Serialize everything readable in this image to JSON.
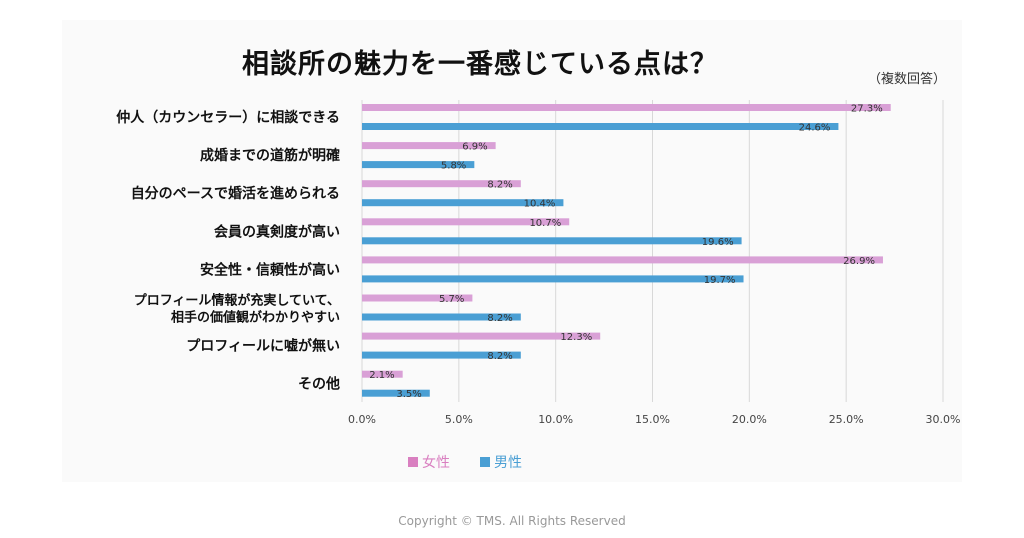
{
  "chart_data": {
    "type": "bar",
    "orientation": "horizontal",
    "title": "相談所の魅力を一番感じている点は？",
    "subtitle": "（複数回答）",
    "categories": [
      [
        "仲人（カウンセラー）に相談できる"
      ],
      [
        "成婚までの道筋が明確"
      ],
      [
        "自分のペースで婚活を進められる"
      ],
      [
        "会員の真剣度が高い"
      ],
      [
        "安全性・信頼性が高い"
      ],
      [
        "プロフィール情報が充実していて、",
        "相手の価値観がわかりやすい"
      ],
      [
        "プロフィールに嘘が無い"
      ],
      [
        "その他"
      ]
    ],
    "series": [
      {
        "name": "女性",
        "color": "#d9a0d6",
        "legend_color": "#d97fc0",
        "values": [
          27.3,
          6.9,
          8.2,
          10.7,
          26.9,
          5.7,
          12.3,
          2.1
        ],
        "labels": [
          "27.3%",
          "6.9%",
          "8.2%",
          "10.7%",
          "26.9%",
          "5.7%",
          "12.3%",
          "2.1%"
        ]
      },
      {
        "name": "男性",
        "color": "#4a9fd4",
        "legend_color": "#4a9fd4",
        "values": [
          24.6,
          5.8,
          10.4,
          19.6,
          19.7,
          8.2,
          8.2,
          3.5
        ],
        "labels": [
          "24.6%",
          "5.8%",
          "10.4%",
          "19.6%",
          "19.7%",
          "8.2%",
          "8.2%",
          "3.5%"
        ]
      }
    ],
    "xlim": [
      0,
      30
    ],
    "ticks": [
      "0.0%",
      "5.0%",
      "10.0%",
      "15.0%",
      "20.0%",
      "25.0%",
      "30.0%"
    ],
    "grid": true
  },
  "footer": "Copyright © TMS. All Rights Reserved"
}
